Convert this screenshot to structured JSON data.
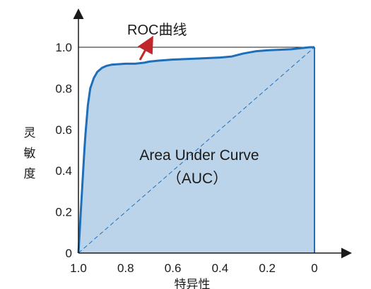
{
  "chart_data": {
    "type": "area",
    "title": "",
    "xlabel": "特异性",
    "ylabel": "灵敏度",
    "x_reversed": true,
    "xlim": [
      1.0,
      0
    ],
    "ylim": [
      0,
      1.0
    ],
    "x_ticks": [
      "1.0",
      "0.8",
      "0.6",
      "0.4",
      "0.2",
      "0"
    ],
    "x_tick_values": [
      1.0,
      0.8,
      0.6,
      0.4,
      0.2,
      0
    ],
    "y_ticks": [
      "0",
      "0.2",
      "0.4",
      "0.6",
      "0.8",
      "1.0"
    ],
    "y_tick_values": [
      0,
      0.2,
      0.4,
      0.6,
      0.8,
      1.0
    ],
    "series": [
      {
        "x": [
          1.0,
          0.995,
          0.99,
          0.985,
          0.98,
          0.975,
          0.97,
          0.965,
          0.96,
          0.95,
          0.935,
          0.92,
          0.9,
          0.88,
          0.86,
          0.8,
          0.76,
          0.72,
          0.7,
          0.66,
          0.6,
          0.5,
          0.4,
          0.35,
          0.3,
          0.25,
          0.2,
          0.1,
          0.02,
          0
        ],
        "y": [
          0,
          0.1,
          0.2,
          0.3,
          0.4,
          0.5,
          0.58,
          0.65,
          0.72,
          0.8,
          0.85,
          0.88,
          0.9,
          0.91,
          0.915,
          0.92,
          0.92,
          0.925,
          0.93,
          0.935,
          0.94,
          0.945,
          0.95,
          0.955,
          0.97,
          0.98,
          0.985,
          0.99,
          1.0,
          1.0
        ]
      }
    ],
    "diagonal": true,
    "fill_color": "#bcd4ea",
    "line_color": "#1e6fb8",
    "arrow_color": "#c0262b",
    "annotations": {
      "curve_label": "ROC曲线",
      "area_label_line1": "Area Under Curve",
      "area_label_line2": "（AUC）"
    }
  }
}
